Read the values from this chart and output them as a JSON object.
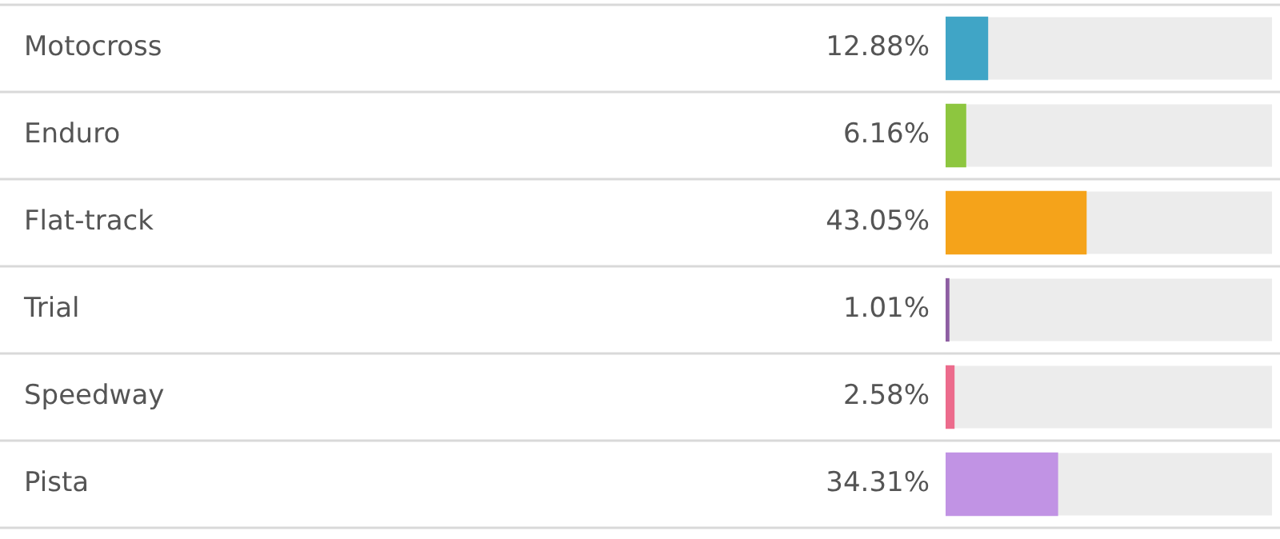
{
  "chart_data": {
    "type": "bar",
    "orientation": "horizontal",
    "categories": [
      "Motocross",
      "Enduro",
      "Flat-track",
      "Trial",
      "Speedway",
      "Pista"
    ],
    "values": [
      12.88,
      6.16,
      43.05,
      1.01,
      2.58,
      34.31
    ],
    "value_labels": [
      "12.88%",
      "6.16%",
      "43.05%",
      "1.01%",
      "2.58%",
      "34.31%"
    ],
    "colors": [
      "#40a5c6",
      "#8dc63f",
      "#f5a31a",
      "#8e5ea2",
      "#ec6b8c",
      "#c193e4"
    ],
    "xlim": [
      0,
      100
    ],
    "tick_labels": false,
    "grid": "y",
    "legend": false
  }
}
